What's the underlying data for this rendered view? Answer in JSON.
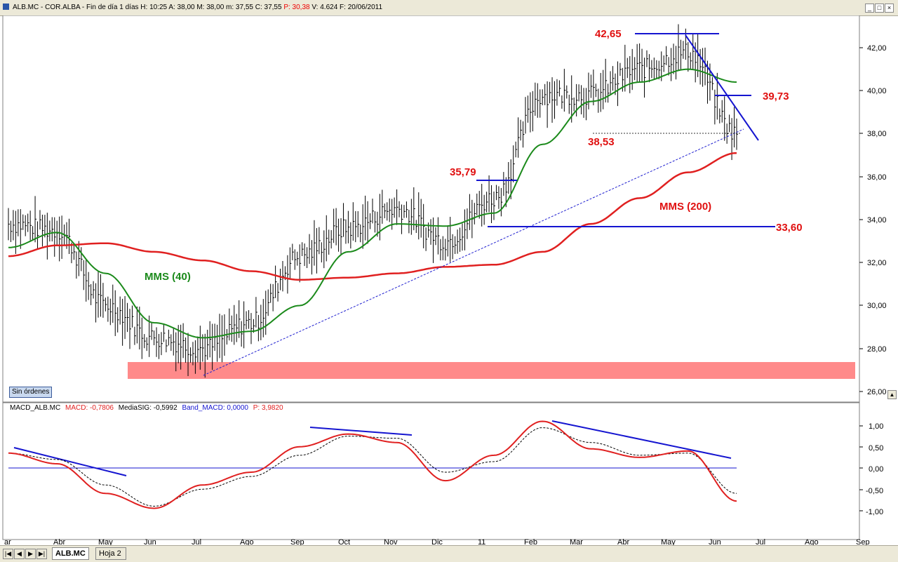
{
  "window": {
    "title_prefix": "ALB.MC - COR.ALBA - Fin de día 1 días  H: 10:25  A: 38,00  M: 38,00  m: 37,55  C: 37,55",
    "title_p": "P: 30,38",
    "title_suffix": "V: 4.624  F: 20/06/2011",
    "buttons": [
      "_",
      "□",
      "×"
    ]
  },
  "price_axis": [
    "42,00",
    "40,00",
    "38,00",
    "36,00",
    "34,00",
    "32,00",
    "30,00",
    "28,00",
    "26,00"
  ],
  "months": [
    "ar",
    "Abr",
    "May",
    "Jun",
    "Jul",
    "Ago",
    "Sep",
    "Oct",
    "Nov",
    "Dic",
    "11",
    "Feb",
    "Mar",
    "Abr",
    "May",
    "Jun",
    "Jul",
    "Ago",
    "Sep"
  ],
  "annotations": {
    "high": "42,65",
    "resistance": "39,73",
    "support_low": "38,53",
    "breakout": "35,79",
    "support": "33,60",
    "mms40": "MMS (40)",
    "mms200": "MMS (200)"
  },
  "sin_ordenes": "Sin órdenes",
  "macd_header": {
    "name": "MACD_ALB.MC",
    "macd": "MACD: -0,7806",
    "signal": "MediaSIG: -0,5992",
    "band": "Band_MACD: 0,0000",
    "p": "P: 3,9820"
  },
  "macd_axis": [
    "1,00",
    "0,50",
    "0,00",
    "-0,50",
    "-1,00"
  ],
  "tabs": {
    "active": "ALB.MC",
    "inactive": "Hoja 2"
  },
  "nav_buttons": [
    "|◀",
    "◀",
    "▶",
    "▶|"
  ],
  "colors": {
    "mms40": "#1b8a1b",
    "mms200": "#e02020",
    "trend": "#1515d0",
    "annot": "#e01010",
    "zone": "#ff8a8a",
    "macd": "#e02020",
    "signal": "#000000"
  },
  "chart_data": [
    {
      "type": "line",
      "title": "ALB.MC - COR.ALBA",
      "x": [
        "2010-03",
        "2010-04",
        "2010-05",
        "2010-06",
        "2010-07",
        "2010-08",
        "2010-09",
        "2010-10",
        "2010-11",
        "2010-12",
        "2011-01",
        "2011-02",
        "2011-03",
        "2011-04",
        "2011-05",
        "2011-06"
      ],
      "series": [
        {
          "name": "Price",
          "values": [
            33.8,
            33.5,
            30.0,
            28.5,
            28.0,
            29.2,
            32.3,
            33.6,
            34.5,
            33.0,
            35.0,
            39.8,
            39.8,
            41.0,
            41.8,
            38.0
          ]
        },
        {
          "name": "MMS (40)",
          "values": [
            32.7,
            33.4,
            31.5,
            29.2,
            28.5,
            28.8,
            30.0,
            32.5,
            33.8,
            33.7,
            34.3,
            37.5,
            39.5,
            40.4,
            41.0,
            40.4
          ]
        },
        {
          "name": "MMS (200)",
          "values": [
            32.3,
            32.8,
            32.9,
            32.5,
            32.1,
            31.6,
            31.2,
            31.3,
            31.5,
            31.8,
            31.9,
            32.5,
            33.8,
            35.0,
            36.2,
            37.1
          ]
        }
      ],
      "ylim": [
        26,
        43
      ],
      "horizontal_levels": [
        42.65,
        39.73,
        38.53,
        35.79,
        33.6
      ],
      "support_zone": [
        26.7,
        27.3
      ],
      "grid": false
    },
    {
      "type": "line",
      "title": "MACD_ALB.MC",
      "x": [
        "2010-03",
        "2010-04",
        "2010-05",
        "2010-06",
        "2010-07",
        "2010-08",
        "2010-09",
        "2010-10",
        "2010-11",
        "2010-12",
        "2011-01",
        "2011-02",
        "2011-03",
        "2011-04",
        "2011-05",
        "2011-06"
      ],
      "series": [
        {
          "name": "MACD",
          "values": [
            0.35,
            0.1,
            -0.6,
            -0.95,
            -0.4,
            -0.1,
            0.5,
            0.8,
            0.6,
            -0.3,
            0.3,
            1.1,
            0.45,
            0.25,
            0.4,
            -0.78
          ]
        },
        {
          "name": "MediaSIG",
          "values": [
            0.35,
            0.2,
            -0.4,
            -0.9,
            -0.5,
            -0.2,
            0.3,
            0.75,
            0.7,
            -0.1,
            0.15,
            0.95,
            0.6,
            0.3,
            0.35,
            -0.6
          ]
        }
      ],
      "ylim": [
        -1.3,
        1.3
      ],
      "band": 0.0
    }
  ]
}
